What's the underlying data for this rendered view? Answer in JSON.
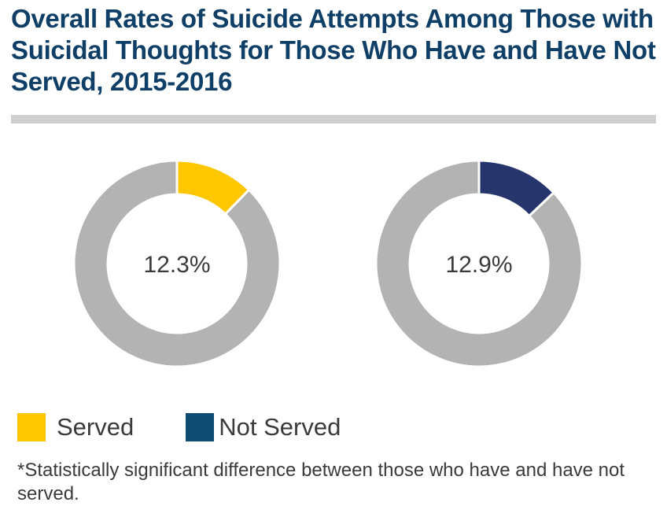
{
  "title": "Overall Rates of Suicide Attempts Among Those with Suicidal Thoughts for Those Who Have and Have Not Served, 2015-2016",
  "legend": [
    {
      "label": "Served",
      "color": "#ffc700"
    },
    {
      "label": "Not Served",
      "color": "#0f4c73"
    }
  ],
  "footnote": "*Statistically significant difference between those who have and have not served.",
  "colors": {
    "title": "#0f3f66",
    "divider": "#cfcfcf",
    "remainder": "#b3b3b3",
    "text": "#3a3a3a"
  },
  "chart_data": {
    "type": "pie",
    "variant": "donut",
    "series": [
      {
        "name": "Served",
        "value": 12.3,
        "label": "12.3%",
        "color": "#ffc700"
      },
      {
        "name": "Not Served",
        "value": 12.9,
        "label": "12.9%",
        "color": "#26366d"
      }
    ],
    "remainder_color": "#b3b3b3",
    "unit": "%"
  }
}
